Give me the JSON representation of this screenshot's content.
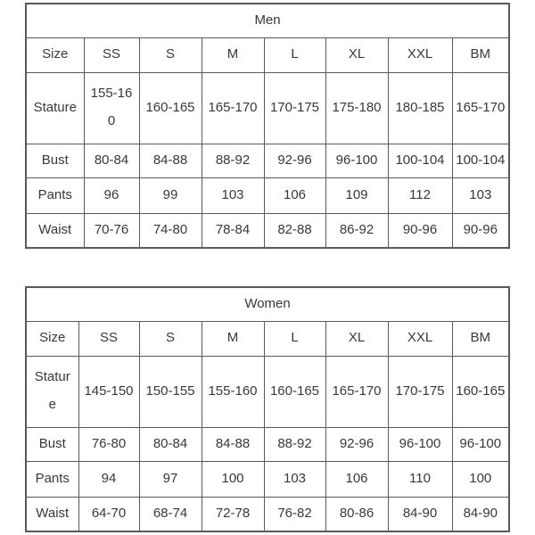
{
  "page": {
    "background_color": "#ffffff",
    "border_color": "#595959",
    "text_color": "#383838"
  },
  "tables": [
    {
      "title": "Men",
      "size_row": {
        "label": "Size",
        "values": [
          "SS",
          "S",
          "M",
          "L",
          "XL",
          "XXL",
          "BM"
        ]
      },
      "rows": [
        {
          "label": "Stature",
          "values": [
            "155-16\n0",
            "160-165",
            "165-170",
            "170-175",
            "175-180",
            "180-185",
            "165-170"
          ]
        },
        {
          "label": "Bust",
          "values": [
            "80-84",
            "84-88",
            "88-92",
            "92-96",
            "96-100",
            "100-104",
            "100-104"
          ]
        },
        {
          "label": "Pants",
          "values": [
            "96",
            "99",
            "103",
            "106",
            "109",
            "112",
            "103"
          ]
        },
        {
          "label": "Waist",
          "values": [
            "70-76",
            "74-80",
            "78-84",
            "82-88",
            "86-92",
            "90-96",
            "90-96"
          ]
        }
      ]
    },
    {
      "title": "Women",
      "size_row": {
        "label": "Size",
        "values": [
          "SS",
          "S",
          "M",
          "L",
          "XL",
          "XXL",
          "BM"
        ]
      },
      "rows": [
        {
          "label": "Statur\ne",
          "values": [
            "145-150",
            "150-155",
            "155-160",
            "160-165",
            "165-170",
            "170-175",
            "160-165"
          ]
        },
        {
          "label": "Bust",
          "values": [
            "76-80",
            "80-84",
            "84-88",
            "88-92",
            "92-96",
            "96-100",
            "96-100"
          ]
        },
        {
          "label": "Pants",
          "values": [
            "94",
            "97",
            "100",
            "103",
            "106",
            "110",
            "100"
          ]
        },
        {
          "label": "Waist",
          "values": [
            "64-70",
            "68-74",
            "72-78",
            "76-82",
            "80-86",
            "84-90",
            "84-90"
          ]
        }
      ]
    }
  ]
}
